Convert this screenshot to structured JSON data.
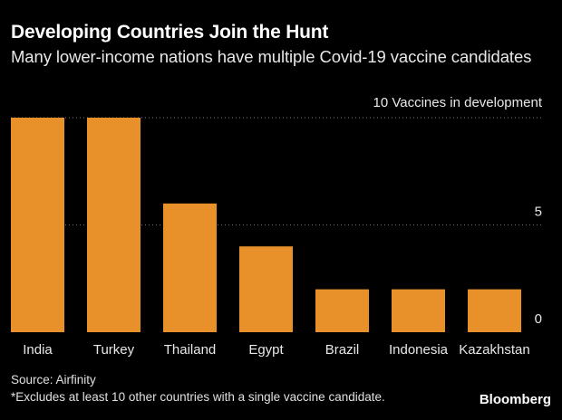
{
  "header": {
    "title": "Developing Countries Join the Hunt",
    "subtitle": "Many lower-income nations have multiple Covid-19 vaccine candidates"
  },
  "footer": {
    "source": "Source: Airfinity",
    "footnote": "*Excludes at least 10 other countries with a single vaccine candidate.",
    "brand": "Bloomberg"
  },
  "colors": {
    "bar": "#e8912a",
    "background": "#000000",
    "gridline": "#777777"
  },
  "chart_data": {
    "type": "bar",
    "categories": [
      "India",
      "Turkey",
      "Thailand",
      "Egypt",
      "Brazil",
      "Indonesia",
      "Kazakhstan"
    ],
    "values": [
      10,
      10,
      6,
      4,
      2,
      2,
      2
    ],
    "ylim": [
      0,
      10
    ],
    "yticks": [
      0,
      5,
      10
    ],
    "ytick_labels": [
      "0",
      "5",
      "10 Vaccines in development"
    ],
    "grid": "dotted-horizontal",
    "yaxis_position": "right"
  }
}
